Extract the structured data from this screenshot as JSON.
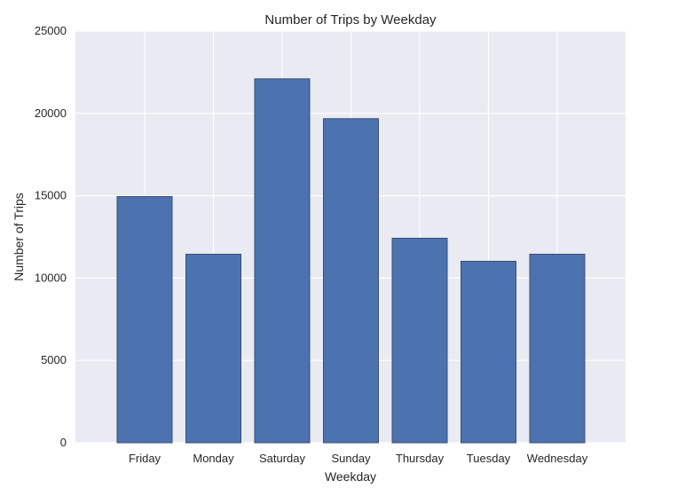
{
  "chart_data": {
    "type": "bar",
    "title": "Number of Trips by Weekday",
    "xlabel": "Weekday",
    "ylabel": "Number of Trips",
    "categories": [
      "Friday",
      "Monday",
      "Saturday",
      "Sunday",
      "Thursday",
      "Tuesday",
      "Wednesday"
    ],
    "values": [
      14950,
      11450,
      22100,
      19680,
      12420,
      11020,
      11450
    ],
    "ylim": [
      0,
      25000
    ],
    "yticks": [
      0,
      5000,
      10000,
      15000,
      20000,
      25000
    ],
    "grid": true,
    "colors": {
      "bar": "#4c72b0",
      "background": "#eaeaf2",
      "grid": "#ffffff"
    }
  }
}
